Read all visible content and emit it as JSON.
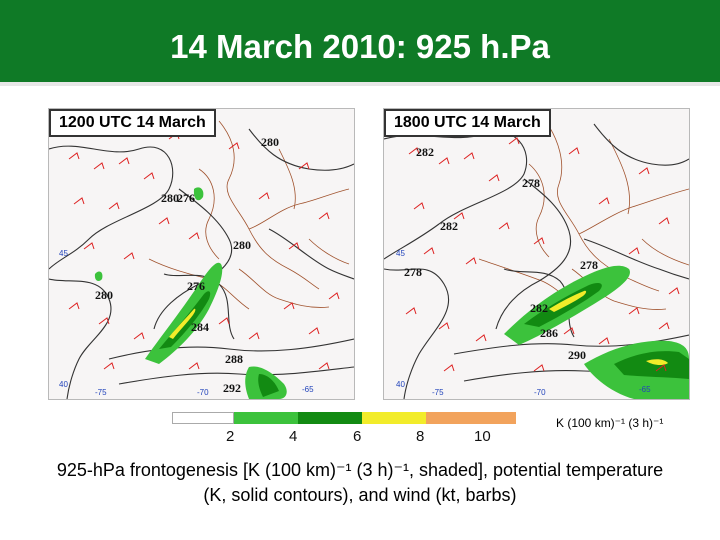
{
  "title": "14 March 2010: 925 h.Pa",
  "panels": [
    {
      "label": "1200 UTC 14 March",
      "contour_labels": [
        "280",
        "280",
        "276",
        "280",
        "276",
        "280",
        "284",
        "288",
        "292"
      ],
      "wind_labels": [
        "45",
        "40",
        "-75",
        "-70",
        "-65"
      ]
    },
    {
      "label": "1800 UTC 14 March",
      "contour_labels": [
        "282",
        "278",
        "282",
        "278",
        "278",
        "282",
        "286",
        "290"
      ],
      "wind_labels": [
        "45",
        "40",
        "-75",
        "-70",
        "-65"
      ]
    }
  ],
  "colorbar": {
    "ticks": [
      "2",
      "4",
      "6",
      "8",
      "10"
    ],
    "unit": "K (100 km)⁻¹ (3 h)⁻¹",
    "colors": [
      "#ffffff",
      "#3cc23c",
      "#128a12",
      "#f2ec2a",
      "#f2a35c"
    ]
  },
  "caption_line1": "925-hPa frontogenesis [K (100 km)⁻¹ (3 h)⁻¹, shaded], potential temperature",
  "caption_line2": "(K, solid contours), and wind (kt, barbs)"
}
